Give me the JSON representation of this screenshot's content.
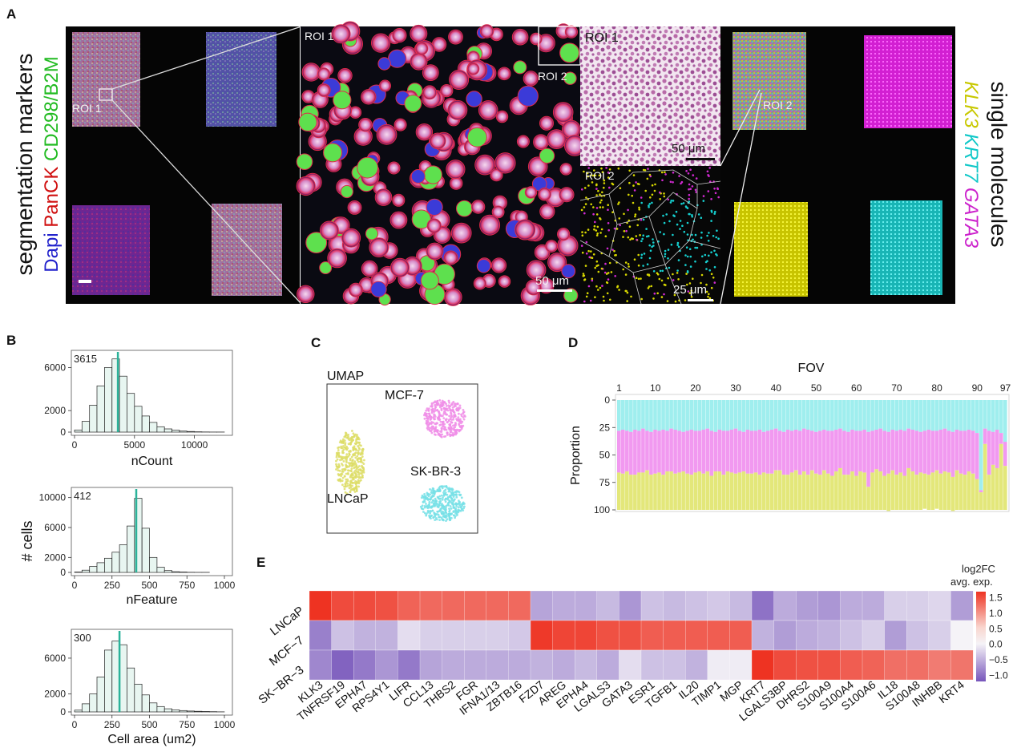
{
  "panels": {
    "A": {
      "label": "A",
      "left_title": [
        "segmentation markers"
      ],
      "left_markers": [
        {
          "text": "Dapi",
          "color": "#2222cc"
        },
        {
          "text": "PanCK",
          "color": "#d01010"
        },
        {
          "text": "CD298/B2M",
          "color": "#22bb22"
        }
      ],
      "right_title": "single molecules",
      "right_markers": [
        {
          "text": "KLK3",
          "color": "#c8c800"
        },
        {
          "text": "KRT7",
          "color": "#10c8c8"
        },
        {
          "text": "GATA3",
          "color": "#cc22cc"
        }
      ],
      "roi1": "ROI 1",
      "roi2": "ROI 2",
      "scale_50": "50 μm",
      "scale_25": "25 μm"
    },
    "B": {
      "label": "B",
      "ylabel": "# cells",
      "colors": {
        "fill": "#e8f6f1",
        "line": "#2bb39a"
      },
      "hists": [
        {
          "xlabel": "nCount",
          "median": "3615",
          "median_value": 3615,
          "xlim": [
            0,
            12500
          ],
          "xticks": [
            0,
            5000,
            10000
          ],
          "yticks": [
            0,
            2000,
            6000
          ],
          "ymax": 7000,
          "bins_width": 625,
          "values": [
            200,
            1000,
            2500,
            4300,
            6000,
            6800,
            5200,
            3600,
            2400,
            1500,
            900,
            500,
            300,
            180,
            100,
            60,
            30,
            15,
            8,
            4
          ]
        },
        {
          "xlabel": "nFeature",
          "median": "412",
          "median_value": 412,
          "xlim": [
            0,
            1000
          ],
          "xticks": [
            0,
            250,
            500,
            750,
            1000
          ],
          "yticks": [
            0,
            2000,
            6000,
            10000
          ],
          "ymax": 10500,
          "bins_width": 50,
          "values": [
            50,
            300,
            800,
            1300,
            1900,
            2700,
            3700,
            6200,
            9900,
            5900,
            2000,
            700,
            250,
            100,
            50,
            25,
            12,
            6,
            3,
            1
          ]
        },
        {
          "xlabel": "Cell area (um2)",
          "median": "300",
          "median_value": 300,
          "xlim": [
            0,
            1000
          ],
          "xticks": [
            0,
            250,
            500,
            750,
            1000
          ],
          "yticks": [
            0,
            2000,
            6000
          ],
          "ymax": 8500,
          "bins_width": 50,
          "values": [
            200,
            900,
            2000,
            3900,
            6900,
            7900,
            7500,
            4900,
            3100,
            1900,
            1000,
            600,
            350,
            220,
            150,
            100,
            70,
            45,
            25,
            10
          ]
        }
      ]
    },
    "C": {
      "label": "C",
      "title": "UMAP",
      "clusters": [
        {
          "name": "MCF-7",
          "color": "#f08ee8"
        },
        {
          "name": "LNCaP",
          "color": "#dddd66"
        },
        {
          "name": "SK-BR-3",
          "color": "#77e0e6"
        }
      ]
    },
    "D": {
      "label": "D",
      "top_title": "FOV",
      "ylabel": "Proportion",
      "xticks": [
        "1",
        "10",
        "20",
        "30",
        "40",
        "50",
        "60",
        "70",
        "80",
        "90",
        "97"
      ],
      "yticks": [
        "0",
        "25",
        "50",
        "75",
        "100"
      ],
      "colors": {
        "top": "#9feeee",
        "middle": "#f199f0",
        "bottom": "#e3e77a"
      }
    },
    "E": {
      "label": "E",
      "legend_title": [
        "log2FC",
        "avg. exp."
      ],
      "legend_ticks": [
        "1.5",
        "1.0",
        "0.5",
        "0.0",
        "−0.5",
        "−1.0"
      ],
      "rows": [
        "LNCaP",
        "MCF−7",
        "SK−BR−3"
      ]
    }
  },
  "chart_data": [
    {
      "type": "bar",
      "title": "",
      "xlabel": "nCount",
      "ylabel": "# cells",
      "annotation": "3615",
      "bin_width": 625,
      "x": [
        0,
        625,
        1250,
        1875,
        2500,
        3125,
        3750,
        4375,
        5000,
        5625,
        6250,
        6875,
        7500,
        8125,
        8750,
        9375,
        10000,
        10625,
        11250,
        11875
      ],
      "values": [
        200,
        1000,
        2500,
        4300,
        6000,
        6800,
        5200,
        3600,
        2400,
        1500,
        900,
        500,
        300,
        180,
        100,
        60,
        30,
        15,
        8,
        4
      ],
      "xlim": [
        0,
        12500
      ],
      "ylim": [
        0,
        7000
      ]
    },
    {
      "type": "bar",
      "title": "",
      "xlabel": "nFeature",
      "ylabel": "# cells",
      "annotation": "412",
      "bin_width": 50,
      "x": [
        0,
        50,
        100,
        150,
        200,
        250,
        300,
        350,
        400,
        450,
        500,
        550,
        600,
        650,
        700,
        750,
        800,
        850,
        900,
        950
      ],
      "values": [
        50,
        300,
        800,
        1300,
        1900,
        2700,
        3700,
        6200,
        9900,
        5900,
        2000,
        700,
        250,
        100,
        50,
        25,
        12,
        6,
        3,
        1
      ],
      "xlim": [
        0,
        1000
      ],
      "ylim": [
        0,
        10500
      ]
    },
    {
      "type": "bar",
      "title": "",
      "xlabel": "Cell area (um2)",
      "ylabel": "# cells",
      "annotation": "300",
      "bin_width": 50,
      "x": [
        0,
        50,
        100,
        150,
        200,
        250,
        300,
        350,
        400,
        450,
        500,
        550,
        600,
        650,
        700,
        750,
        800,
        850,
        900,
        950
      ],
      "values": [
        200,
        900,
        2000,
        3900,
        6900,
        7900,
        7500,
        4900,
        3100,
        1900,
        1000,
        600,
        350,
        220,
        150,
        100,
        70,
        45,
        25,
        10
      ],
      "xlim": [
        0,
        1000
      ],
      "ylim": [
        0,
        8500
      ]
    },
    {
      "type": "scatter",
      "title": "UMAP",
      "xlabel": "",
      "ylabel": "",
      "series": [
        {
          "name": "MCF-7",
          "x": [
            0.75
          ],
          "y": [
            0.85
          ]
        },
        {
          "name": "LNCaP",
          "x": [
            0.25
          ],
          "y": [
            0.45
          ]
        },
        {
          "name": "SK-BR-3",
          "x": [
            0.72
          ],
          "y": [
            0.25
          ]
        }
      ]
    },
    {
      "type": "bar",
      "stacked": true,
      "title": "FOV",
      "xlabel": "FOV",
      "ylabel": "Proportion",
      "ylim": [
        0,
        100
      ],
      "y_reversed": true,
      "categories": "FOV 1-97",
      "series": [
        {
          "name": "SK-BR-3 (cyan)",
          "values": [
            28,
            27,
            28,
            29,
            27,
            28,
            26,
            28,
            29,
            27,
            28,
            27,
            28,
            26,
            27,
            28,
            29,
            28,
            27,
            28,
            28,
            27,
            26,
            28,
            29,
            27,
            28,
            28,
            27,
            26,
            28,
            29,
            27,
            28,
            28,
            27,
            29,
            28,
            27,
            26,
            28,
            29,
            27,
            28,
            27,
            28,
            26,
            27,
            28,
            29,
            28,
            27,
            28,
            28,
            27,
            26,
            28,
            29,
            27,
            28,
            28,
            27,
            29,
            28,
            27,
            26,
            28,
            29,
            27,
            28,
            27,
            28,
            26,
            27,
            28,
            29,
            28,
            27,
            28,
            28,
            27,
            26,
            28,
            29,
            27,
            28,
            28,
            27,
            28,
            30,
            82,
            26,
            28,
            29,
            27,
            30,
            38
          ]
        },
        {
          "name": "MCF-7 (magenta)",
          "values": [
            38,
            40,
            37,
            39,
            41,
            38,
            40,
            36,
            39,
            40,
            38,
            41,
            37,
            39,
            40,
            38,
            36,
            39,
            41,
            38,
            37,
            40,
            39,
            41,
            36,
            38,
            40,
            37,
            39,
            41,
            38,
            36,
            40,
            39,
            38,
            41,
            37,
            39,
            40,
            38,
            36,
            39,
            41,
            38,
            37,
            40,
            39,
            41,
            36,
            38,
            40,
            37,
            39,
            41,
            38,
            36,
            40,
            39,
            38,
            41,
            37,
            39,
            50,
            38,
            36,
            39,
            41,
            38,
            37,
            40,
            39,
            41,
            36,
            38,
            40,
            37,
            39,
            41,
            38,
            36,
            40,
            39,
            38,
            41,
            37,
            39,
            40,
            38,
            39,
            42,
            2,
            14,
            40,
            30,
            35,
            10,
            22
          ]
        },
        {
          "name": "LNCaP (yellow)",
          "values": [
            34,
            33,
            35,
            32,
            32,
            34,
            34,
            36,
            32,
            33,
            34,
            32,
            35,
            35,
            33,
            34,
            35,
            33,
            32,
            34,
            35,
            33,
            35,
            31,
            35,
            35,
            32,
            35,
            34,
            33,
            34,
            35,
            33,
            33,
            34,
            32,
            34,
            33,
            33,
            36,
            36,
            32,
            32,
            34,
            36,
            32,
            35,
            32,
            36,
            33,
            32,
            36,
            33,
            31,
            35,
            38,
            32,
            32,
            35,
            31,
            35,
            34,
            21,
            34,
            37,
            35,
            31,
            34,
            36,
            32,
            34,
            31,
            38,
            35,
            32,
            34,
            32,
            32,
            34,
            35,
            33,
            35,
            34,
            31,
            36,
            33,
            32,
            35,
            33,
            28,
            16,
            60,
            32,
            41,
            38,
            60,
            40
          ]
        }
      ]
    },
    {
      "type": "heatmap",
      "title": "",
      "legend_title": "log2FC avg. exp.",
      "rows": [
        "LNCaP",
        "MCF−7",
        "SK−BR−3"
      ],
      "columns": [
        "KLK3",
        "TNFRSF19",
        "EPHA7",
        "RPS4Y1",
        "LIFR",
        "CCL13",
        "THBS2",
        "FGR",
        "IFNA1/13",
        "ZBTB16",
        "FZD7",
        "AREG",
        "EPHA4",
        "LGALS3",
        "GATA3",
        "ESR1",
        "TGFB1",
        "IL20",
        "TIMP1",
        "MGP",
        "KRT7",
        "LGALS3BP",
        "DHRS2",
        "S100A9",
        "S100A4",
        "S100A6",
        "IL18",
        "S100A8",
        "INHBB",
        "KRT4"
      ],
      "values": [
        [
          1.6,
          1.4,
          1.4,
          1.35,
          1.2,
          1.15,
          1.15,
          1.15,
          1.15,
          1.15,
          -0.55,
          -0.5,
          -0.5,
          -0.4,
          -0.65,
          -0.35,
          -0.4,
          -0.35,
          -0.3,
          -0.4,
          -0.9,
          -0.5,
          -0.6,
          -0.65,
          -0.5,
          -0.5,
          -0.25,
          -0.25,
          -0.2,
          -0.6
        ],
        [
          -0.8,
          -0.35,
          -0.45,
          -0.45,
          -0.15,
          -0.25,
          -0.25,
          -0.25,
          -0.25,
          -0.3,
          1.55,
          1.45,
          1.45,
          1.35,
          1.35,
          1.25,
          1.25,
          1.25,
          1.25,
          1.25,
          -0.45,
          -0.6,
          -0.5,
          -0.45,
          -0.35,
          -0.25,
          -0.6,
          -0.35,
          -0.25,
          0.0
        ],
        [
          -0.75,
          -1.0,
          -0.85,
          -0.65,
          -0.85,
          -0.55,
          -0.5,
          -0.5,
          -0.5,
          -0.5,
          -0.45,
          -0.5,
          -0.4,
          -0.5,
          -0.15,
          -0.35,
          -0.35,
          -0.45,
          -0.05,
          -0.05,
          1.6,
          1.4,
          1.35,
          1.35,
          1.25,
          1.2,
          1.1,
          1.1,
          1.0,
          1.05
        ]
      ],
      "vlim": [
        -1.2,
        1.7
      ]
    }
  ]
}
